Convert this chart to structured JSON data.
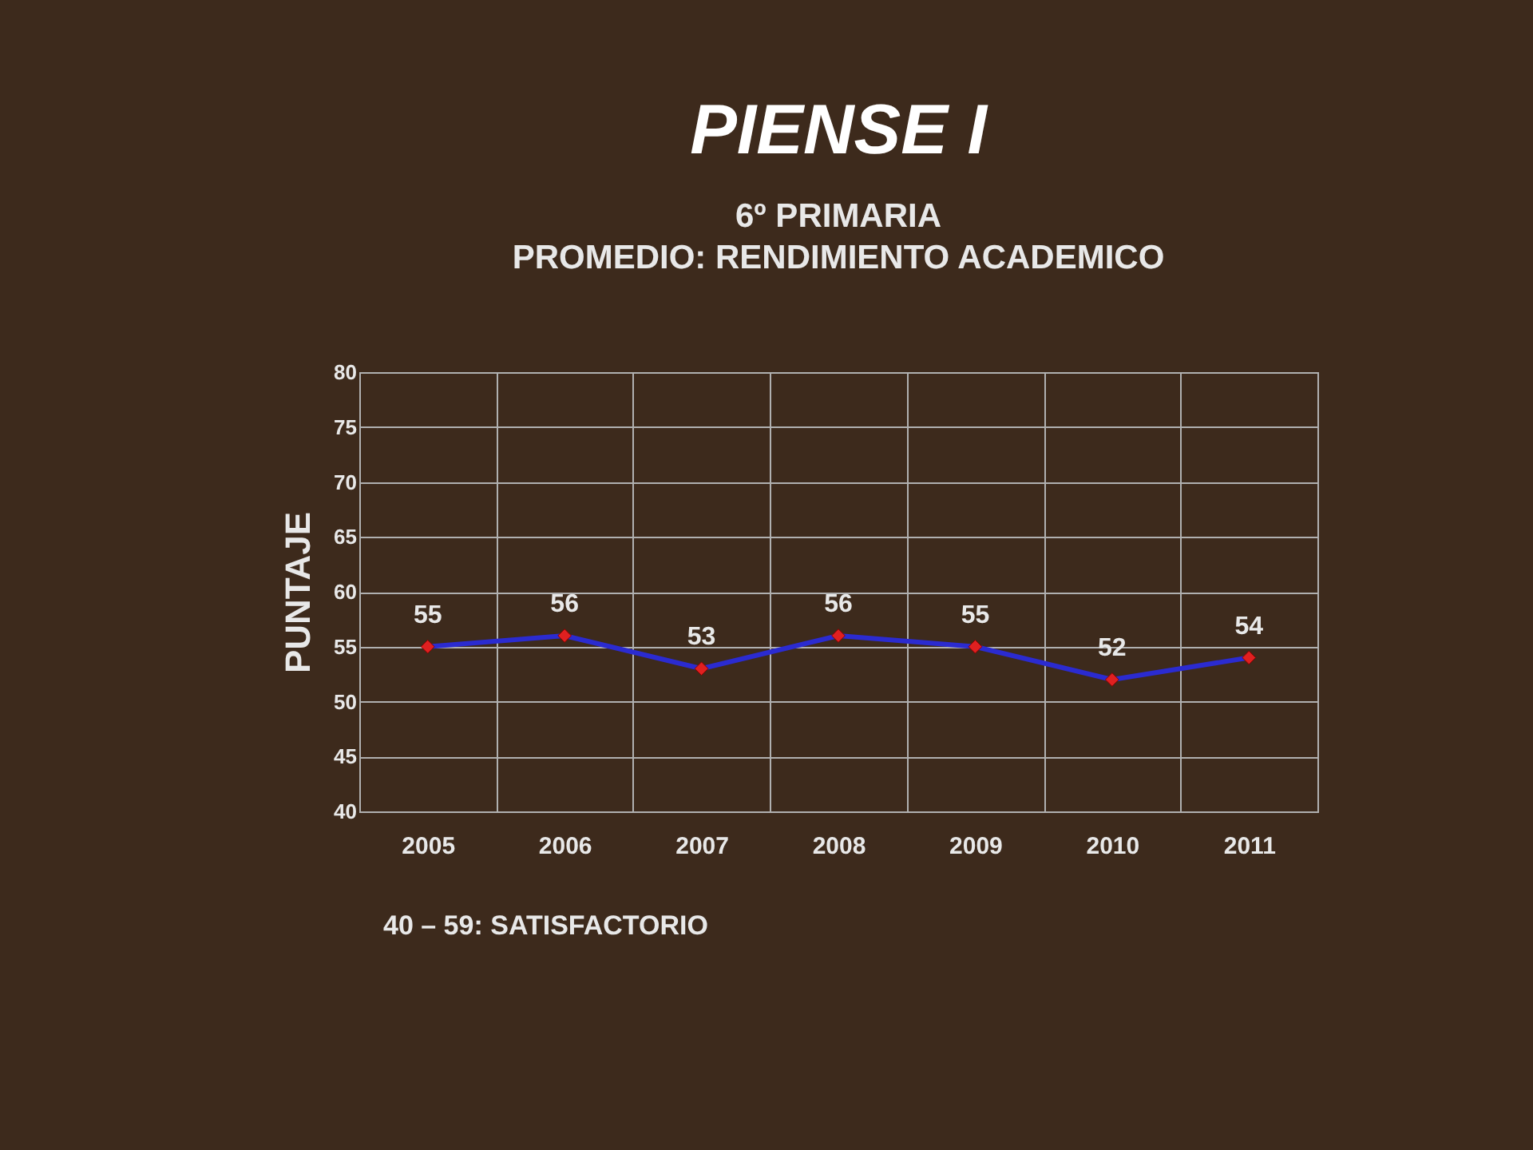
{
  "chart_data": {
    "type": "line",
    "title": "PIENSE I",
    "subtitle": [
      "6º PRIMARIA",
      "PROMEDIO: RENDIMIENTO ACADEMICO"
    ],
    "ylabel": "PUNTAJE",
    "categories": [
      "2005",
      "2006",
      "2007",
      "2008",
      "2009",
      "2010",
      "2011"
    ],
    "series": [
      {
        "color": "#2b2bd0",
        "colors": [
          "#e02020",
          "#e02020",
          "#e02020",
          "#e02020",
          "#e02020",
          "#e02020",
          "#e02020"
        ],
        "values": [
          55,
          56,
          53,
          56,
          55,
          52,
          54
        ]
      }
    ],
    "ylim": [
      40,
      80
    ],
    "yticks": [
      40,
      45,
      50,
      55,
      60,
      65,
      70,
      75,
      80
    ],
    "grid": true,
    "marker": "diamond",
    "line_style": "solid",
    "data_labels": true,
    "annotations": [
      "40 – 59: SATISFACTORIO"
    ]
  }
}
